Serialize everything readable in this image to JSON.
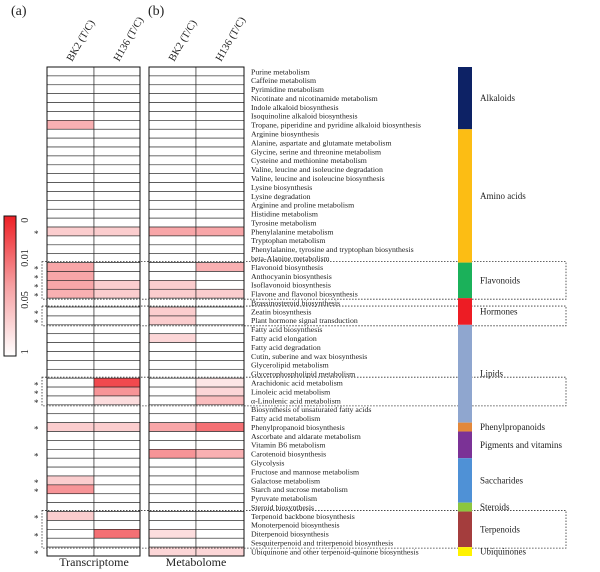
{
  "chart_data": {
    "type": "heatmap",
    "panel_labels": [
      "(a)",
      "(b)"
    ],
    "columns": [
      "BK2 (T/C)",
      "H136 (T/C)"
    ],
    "footer_labels": [
      "Transcriptome",
      "Metabolome"
    ],
    "colorbar": {
      "ticks": [
        "0",
        "0.01",
        "0.05",
        "1"
      ],
      "low_color": "#ee1f25",
      "high_color": "#ffffff"
    },
    "rows": [
      {
        "name": "Purine metabolism",
        "mark": "",
        "t": [
          null,
          null
        ],
        "m": [
          null,
          null
        ]
      },
      {
        "name": "Caffeine metabolism",
        "mark": "",
        "t": [
          null,
          null
        ],
        "m": [
          null,
          null
        ]
      },
      {
        "name": "Pyrimidine metabolism",
        "mark": "",
        "t": [
          null,
          null
        ],
        "m": [
          null,
          null
        ]
      },
      {
        "name": "Nicotinate and nicotinamide metabolism",
        "mark": "",
        "t": [
          null,
          null
        ],
        "m": [
          null,
          null
        ]
      },
      {
        "name": "Indole alkaloid biosynthesis",
        "mark": "",
        "t": [
          null,
          null
        ],
        "m": [
          null,
          null
        ]
      },
      {
        "name": "Isoquinoline alkaloid biosynthesis",
        "mark": "",
        "t": [
          null,
          null
        ],
        "m": [
          null,
          null
        ]
      },
      {
        "name": "Tropane, piperidine and pyridine alkaloid biosynthesis",
        "mark": "",
        "t": [
          0.03,
          null
        ],
        "m": [
          null,
          null
        ]
      },
      {
        "name": "Arginine biosynthesis",
        "mark": "",
        "t": [
          null,
          null
        ],
        "m": [
          null,
          null
        ]
      },
      {
        "name": "Alanine, aspartate and glutamate metabolism",
        "mark": "",
        "t": [
          null,
          null
        ],
        "m": [
          null,
          null
        ]
      },
      {
        "name": "Glycine, serine and threonine metabolism",
        "mark": "",
        "t": [
          null,
          null
        ],
        "m": [
          null,
          null
        ]
      },
      {
        "name": "Cysteine and methionine metabolism",
        "mark": "",
        "t": [
          null,
          null
        ],
        "m": [
          null,
          null
        ]
      },
      {
        "name": "Valine, leucine and isoleucine degradation",
        "mark": "",
        "t": [
          null,
          null
        ],
        "m": [
          null,
          null
        ]
      },
      {
        "name": "Valine, leucine and isoleucine biosynthesis",
        "mark": "",
        "t": [
          null,
          null
        ],
        "m": [
          null,
          null
        ]
      },
      {
        "name": "Lysine biosynthesis",
        "mark": "",
        "t": [
          null,
          null
        ],
        "m": [
          null,
          null
        ]
      },
      {
        "name": "Lysine degradation",
        "mark": "",
        "t": [
          null,
          null
        ],
        "m": [
          null,
          null
        ]
      },
      {
        "name": "Arginine and proline metabolism",
        "mark": "",
        "t": [
          null,
          null
        ],
        "m": [
          null,
          null
        ]
      },
      {
        "name": "Histidine metabolism",
        "mark": "",
        "t": [
          null,
          null
        ],
        "m": [
          null,
          null
        ]
      },
      {
        "name": "Tyrosine metabolism",
        "mark": "",
        "t": [
          null,
          null
        ],
        "m": [
          null,
          null
        ]
      },
      {
        "name": "Phenylalanine metabolism",
        "mark": "*",
        "t": [
          0.1,
          0.1
        ],
        "m": [
          0.02,
          0.02
        ]
      },
      {
        "name": "Tryptophan metabolism",
        "mark": "",
        "t": [
          null,
          null
        ],
        "m": [
          null,
          null
        ]
      },
      {
        "name": "Phenylalanine, tyrosine and tryptophan biosynthesis",
        "mark": "",
        "t": [
          null,
          null
        ],
        "m": [
          null,
          null
        ]
      },
      {
        "name": "beta-Alanine metabolism",
        "mark": "",
        "t": [
          null,
          null
        ],
        "m": [
          null,
          null
        ]
      },
      {
        "name": "Flavonoid biosynthesis",
        "mark": "*",
        "t": [
          0.02,
          null
        ],
        "m": [
          null,
          0.03
        ]
      },
      {
        "name": "Anthocyanin biosynthesis",
        "mark": "*",
        "t": [
          0.02,
          null
        ],
        "m": [
          null,
          null
        ]
      },
      {
        "name": "Isoflavonoid biosynthesis",
        "mark": "*",
        "t": [
          0.02,
          0.1
        ],
        "m": [
          0.1,
          null
        ]
      },
      {
        "name": "Flavone and flavonol biosynthesis",
        "mark": "*",
        "t": [
          0.03,
          0.1
        ],
        "m": [
          0.1,
          0.1
        ]
      },
      {
        "name": "Brassinosteroid biosynthesis",
        "mark": "",
        "t": [
          null,
          null
        ],
        "m": [
          null,
          null
        ]
      },
      {
        "name": "Zeatin biosynthesis",
        "mark": "*",
        "t": [
          null,
          null
        ],
        "m": [
          0.1,
          null
        ]
      },
      {
        "name": "Plant hormone signal transduction",
        "mark": "*",
        "t": [
          null,
          null
        ],
        "m": [
          0.1,
          null
        ]
      },
      {
        "name": "Fatty acid biosynthesis",
        "mark": "",
        "t": [
          null,
          null
        ],
        "m": [
          null,
          null
        ]
      },
      {
        "name": "Fatty acid elongation",
        "mark": "",
        "t": [
          null,
          null
        ],
        "m": [
          0.15,
          null
        ]
      },
      {
        "name": "Fatty acid degradation",
        "mark": "",
        "t": [
          null,
          null
        ],
        "m": [
          null,
          null
        ]
      },
      {
        "name": "Cutin, suberine and wax biosynthesis",
        "mark": "",
        "t": [
          null,
          null
        ],
        "m": [
          null,
          null
        ]
      },
      {
        "name": "Glycerolipid metabolism",
        "mark": "",
        "t": [
          null,
          null
        ],
        "m": [
          null,
          null
        ]
      },
      {
        "name": "Glycerophospholipid metabolism",
        "mark": "",
        "t": [
          null,
          null
        ],
        "m": [
          null,
          null
        ]
      },
      {
        "name": "Arachidonic acid metabolism",
        "mark": "*",
        "t": [
          null,
          0.001
        ],
        "m": [
          null,
          0.3
        ]
      },
      {
        "name": "Linoleic acid metabolism",
        "mark": "*",
        "t": [
          null,
          0.01
        ],
        "m": [
          null,
          0.15
        ]
      },
      {
        "name": "α-Linolenic acid metabolism",
        "mark": "*",
        "t": [
          null,
          0.2
        ],
        "m": [
          null,
          0.05
        ]
      },
      {
        "name": "Biosynthesis of unsaturated fatty acids",
        "mark": "",
        "t": [
          null,
          null
        ],
        "m": [
          null,
          null
        ]
      },
      {
        "name": "Fatty acid metabolism",
        "mark": "",
        "t": [
          null,
          null
        ],
        "m": [
          null,
          null
        ]
      },
      {
        "name": "Phenylpropanoid biosynthesis",
        "mark": "*",
        "t": [
          0.1,
          0.1
        ],
        "m": [
          0.02,
          0.003
        ]
      },
      {
        "name": "Ascorbate and aldarate metabolism",
        "mark": "",
        "t": [
          null,
          null
        ],
        "m": [
          null,
          null
        ]
      },
      {
        "name": "Vitamin B6 metabolism",
        "mark": "",
        "t": [
          null,
          null
        ],
        "m": [
          null,
          null
        ]
      },
      {
        "name": "Carotenoid biosynthesis",
        "mark": "*",
        "t": [
          null,
          null
        ],
        "m": [
          0.01,
          0.03
        ]
      },
      {
        "name": "Glycolysis",
        "mark": "",
        "t": [
          null,
          null
        ],
        "m": [
          null,
          null
        ]
      },
      {
        "name": "Fructose and mannose metabolism",
        "mark": "",
        "t": [
          null,
          null
        ],
        "m": [
          null,
          null
        ]
      },
      {
        "name": "Galactose metabolism",
        "mark": "*",
        "t": [
          0.1,
          null
        ],
        "m": [
          null,
          null
        ]
      },
      {
        "name": "Starch and sucrose metabolism",
        "mark": "*",
        "t": [
          0.01,
          null
        ],
        "m": [
          null,
          null
        ]
      },
      {
        "name": "Pyruvate metabolism",
        "mark": "",
        "t": [
          null,
          null
        ],
        "m": [
          null,
          null
        ]
      },
      {
        "name": "Steroid biosynthesis",
        "mark": "",
        "t": [
          null,
          null
        ],
        "m": [
          null,
          null
        ]
      },
      {
        "name": "Terpenoid backbone biosynthesis",
        "mark": "*",
        "t": [
          0.1,
          null
        ],
        "m": [
          null,
          null
        ]
      },
      {
        "name": "Monoterpenoid biosynthesis",
        "mark": "",
        "t": [
          null,
          null
        ],
        "m": [
          null,
          null
        ]
      },
      {
        "name": "Diterpenoid biosynthesis",
        "mark": "*",
        "t": [
          null,
          0.003
        ],
        "m": [
          0.2,
          null
        ]
      },
      {
        "name": "Sesquiterpenoid and triterpenoid biosynthesis",
        "mark": "",
        "t": [
          null,
          null
        ],
        "m": [
          null,
          null
        ]
      },
      {
        "name": "Ubiquinone and other terpenoid-quinone biosynthesis",
        "mark": "*",
        "t": [
          null,
          null
        ],
        "m": [
          0.15,
          0.15
        ]
      }
    ],
    "categories": [
      {
        "label": "Alkaloids",
        "color": "#0d2265",
        "rows": [
          0,
          6
        ]
      },
      {
        "label": "Amino acids",
        "color": "#fcbd14",
        "rows": [
          7,
          21
        ]
      },
      {
        "label": "Flavonoids",
        "color": "#1bb15a",
        "rows": [
          22,
          25
        ]
      },
      {
        "label": "Hormones",
        "color": "#ed1c24",
        "rows": [
          26,
          28
        ]
      },
      {
        "label": "Lipids",
        "color": "#8fa6cf",
        "rows": [
          29,
          39
        ]
      },
      {
        "label": "Phenylpropanoids",
        "color": "#e3883a",
        "rows": [
          40,
          40
        ]
      },
      {
        "label": "Pigments and vitamins",
        "color": "#7b3296",
        "rows": [
          41,
          43
        ]
      },
      {
        "label": "Saccharides",
        "color": "#4f91d6",
        "rows": [
          44,
          48
        ]
      },
      {
        "label": "Steroids",
        "color": "#8cc63f",
        "rows": [
          49,
          49
        ]
      },
      {
        "label": "Terpenoids",
        "color": "#a43d3d",
        "rows": [
          50,
          53
        ]
      },
      {
        "label": "Ubiquinones",
        "color": "#fff200",
        "rows": [
          54,
          54
        ]
      }
    ],
    "highlight_boxes": [
      [
        22,
        25
      ],
      [
        27,
        28
      ],
      [
        35,
        37
      ],
      [
        50,
        53
      ]
    ]
  }
}
